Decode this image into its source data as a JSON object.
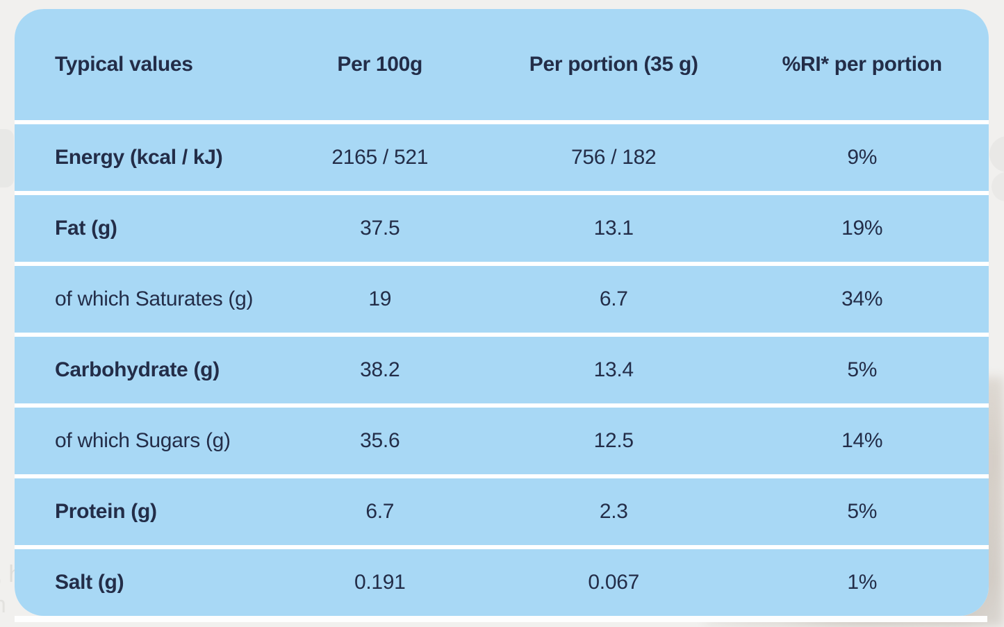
{
  "colors": {
    "page_background": "#f1f0ee",
    "row_blue": "#a8d8f5",
    "divider_white": "#ffffff",
    "text_navy": "#232d48"
  },
  "background": {
    "fragments": [
      ", h",
      "n"
    ]
  },
  "table": {
    "columns": [
      "Typical values",
      "Per 100g",
      "Per portion (35 g)",
      "%RI* per portion"
    ],
    "rows": [
      {
        "label": "Energy (kcal / kJ)",
        "bold": true,
        "per_100g": "2165 / 521",
        "per_portion": "756 / 182",
        "ri_per_portion": "9%"
      },
      {
        "label": "Fat (g)",
        "bold": true,
        "per_100g": "37.5",
        "per_portion": "13.1",
        "ri_per_portion": "19%"
      },
      {
        "label": "of which Saturates (g)",
        "bold": false,
        "per_100g": "19",
        "per_portion": "6.7",
        "ri_per_portion": "34%"
      },
      {
        "label": "Carbohydrate (g)",
        "bold": true,
        "per_100g": "38.2",
        "per_portion": "13.4",
        "ri_per_portion": "5%"
      },
      {
        "label": "of which Sugars (g)",
        "bold": false,
        "per_100g": "35.6",
        "per_portion": "12.5",
        "ri_per_portion": "14%"
      },
      {
        "label": "Protein (g)",
        "bold": true,
        "per_100g": "6.7",
        "per_portion": "2.3",
        "ri_per_portion": "5%"
      },
      {
        "label": "Salt (g)",
        "bold": true,
        "per_100g": "0.191",
        "per_portion": "0.067",
        "ri_per_portion": "1%"
      }
    ]
  }
}
